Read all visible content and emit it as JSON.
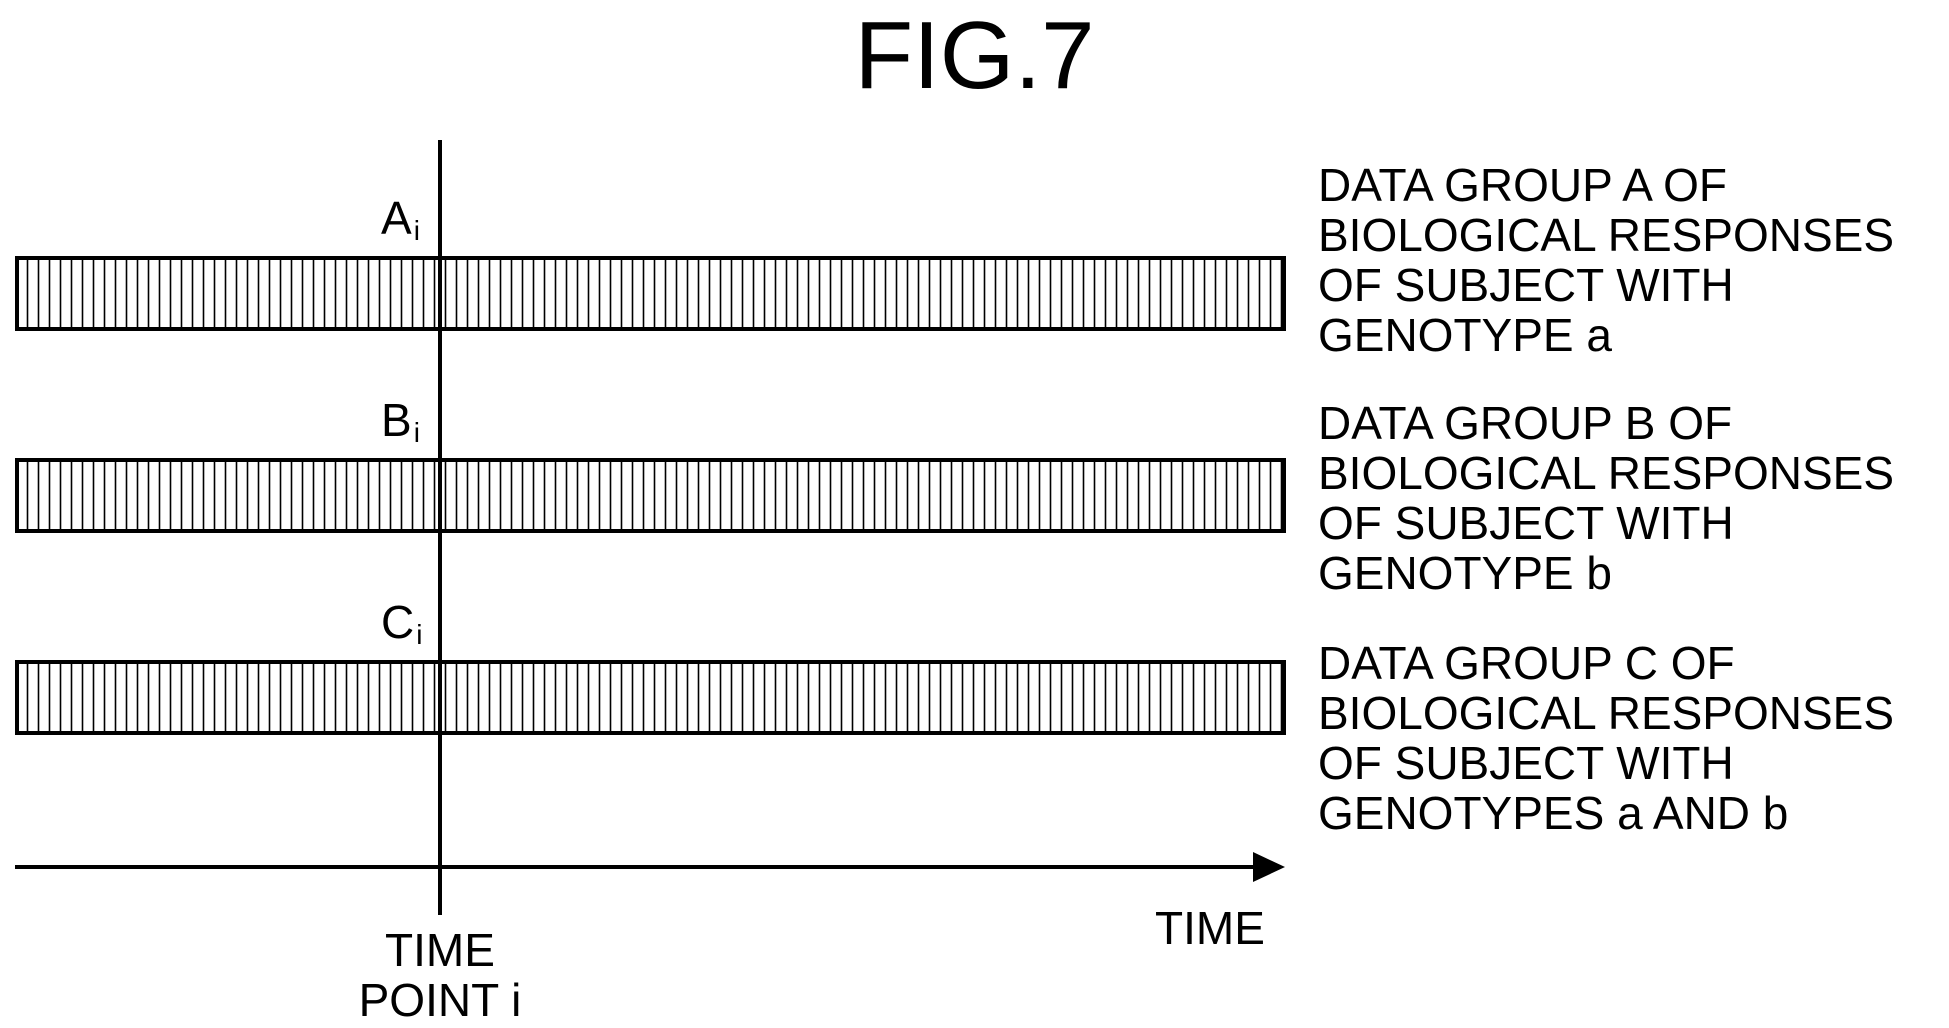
{
  "figure": {
    "title": "FIG.7"
  },
  "time_axis": {
    "label": "TIME"
  },
  "time_point": {
    "label": "TIME\nPOINT i"
  },
  "groups": [
    {
      "marker_letter": "A",
      "marker_sub": "i",
      "label": "DATA GROUP A OF\nBIOLOGICAL RESPONSES\nOF SUBJECT WITH\nGENOTYPE a"
    },
    {
      "marker_letter": "B",
      "marker_sub": "i",
      "label": "DATA GROUP B OF\nBIOLOGICAL RESPONSES\nOF SUBJECT WITH\nGENOTYPE b"
    },
    {
      "marker_letter": "C",
      "marker_sub": "i",
      "label": "DATA GROUP C OF\nBIOLOGICAL RESPONSES\nOF SUBJECT WITH\nGENOTYPES a AND b"
    }
  ]
}
